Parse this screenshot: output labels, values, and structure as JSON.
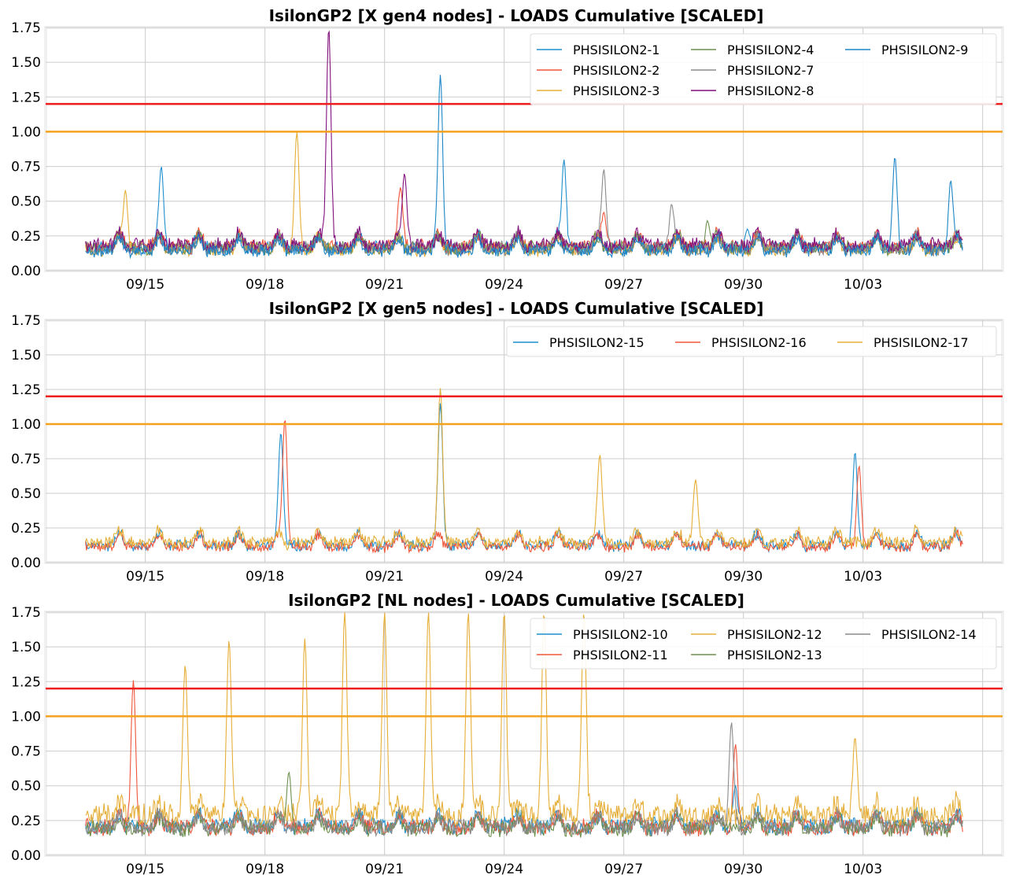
{
  "figure": {
    "thresholds": [
      {
        "value": 1.2,
        "color": "#ee1c1c"
      },
      {
        "value": 1.0,
        "color": "#f4a21e"
      }
    ]
  },
  "chart_data": [
    {
      "type": "line",
      "title": "IsilonGP2 [X gen4 nodes] - LOADS Cumulative [SCALED]",
      "xlabel": "",
      "ylabel": "",
      "xlim": [
        "09/12 12:00",
        "10/06 12:00"
      ],
      "ylim": [
        0,
        1.75
      ],
      "yticks": [
        "0.00",
        "0.25",
        "0.50",
        "0.75",
        "1.00",
        "1.25",
        "1.50",
        "1.75"
      ],
      "xticks": [
        "09/15",
        "09/18",
        "09/21",
        "09/24",
        "09/27",
        "09/30",
        "10/03"
      ],
      "grid": true,
      "legend": {
        "placement": "top-right",
        "columns": 3,
        "entries": [
          "PHSISILON2-1",
          "PHSISILON2-2",
          "PHSISILON2-3",
          "PHSISILON2-4",
          "PHSISILON2-7",
          "PHSISILON2-8",
          "PHSISILON2-9"
        ]
      },
      "series": [
        {
          "name": "PHSISILON2-1",
          "color": "#1f8fcf",
          "baseline": 0.17,
          "spikes": [
            [
              15.4,
              0.75
            ],
            [
              25.5,
              0.8
            ],
            [
              30.1,
              0.3
            ]
          ]
        },
        {
          "name": "PHSISILON2-2",
          "color": "#f0553a",
          "baseline": 0.18,
          "spikes": [
            [
              21.4,
              0.6
            ],
            [
              26.5,
              0.42
            ]
          ]
        },
        {
          "name": "PHSISILON2-3",
          "color": "#e5ae38",
          "baseline": 0.16,
          "spikes": [
            [
              18.8,
              1.0
            ],
            [
              14.5,
              0.58
            ]
          ]
        },
        {
          "name": "PHSISILON2-4",
          "color": "#6d904f",
          "baseline": 0.17,
          "spikes": [
            [
              29.1,
              0.36
            ]
          ]
        },
        {
          "name": "PHSISILON2-7",
          "color": "#8b8b8b",
          "baseline": 0.17,
          "spikes": [
            [
              26.5,
              0.73
            ],
            [
              28.2,
              0.48
            ]
          ]
        },
        {
          "name": "PHSISILON2-8",
          "color": "#810f7c",
          "baseline": 0.19,
          "spikes": [
            [
              19.6,
              1.75
            ],
            [
              21.5,
              0.7
            ]
          ]
        },
        {
          "name": "PHSISILON2-9",
          "color": "#1c86c8",
          "baseline": 0.15,
          "spikes": [
            [
              22.4,
              1.41
            ],
            [
              33.8,
              0.82
            ],
            [
              35.2,
              0.65
            ]
          ]
        }
      ]
    },
    {
      "type": "line",
      "title": "IsilonGP2 [X gen5 nodes] - LOADS Cumulative [SCALED]",
      "xlabel": "",
      "ylabel": "",
      "xlim": [
        "09/12 12:00",
        "10/06 12:00"
      ],
      "ylim": [
        0,
        1.75
      ],
      "yticks": [
        "0.00",
        "0.25",
        "0.50",
        "0.75",
        "1.00",
        "1.25",
        "1.50",
        "1.75"
      ],
      "xticks": [
        "09/15",
        "09/18",
        "09/21",
        "09/24",
        "09/27",
        "09/30",
        "10/03"
      ],
      "grid": true,
      "legend": {
        "placement": "top-right",
        "columns": 3,
        "entries": [
          "PHSISILON2-15",
          "PHSISILON2-16",
          "PHSISILON2-17"
        ]
      },
      "series": [
        {
          "name": "PHSISILON2-15",
          "color": "#1f8fcf",
          "baseline": 0.13,
          "spikes": [
            [
              18.4,
              0.94
            ],
            [
              22.4,
              1.15
            ],
            [
              32.8,
              0.8
            ]
          ]
        },
        {
          "name": "PHSISILON2-16",
          "color": "#f0553a",
          "baseline": 0.12,
          "spikes": [
            [
              18.5,
              1.04
            ],
            [
              32.9,
              0.7
            ]
          ]
        },
        {
          "name": "PHSISILON2-17",
          "color": "#e5ae38",
          "baseline": 0.15,
          "spikes": [
            [
              22.4,
              1.26
            ],
            [
              26.4,
              0.78
            ],
            [
              28.8,
              0.6
            ]
          ]
        }
      ]
    },
    {
      "type": "line",
      "title": "IsilonGP2 [NL nodes] - LOADS Cumulative [SCALED]",
      "xlabel": "",
      "ylabel": "",
      "xlim": [
        "09/12 12:00",
        "10/06 12:00"
      ],
      "ylim": [
        0,
        1.75
      ],
      "yticks": [
        "0.00",
        "0.25",
        "0.50",
        "0.75",
        "1.00",
        "1.25",
        "1.50",
        "1.75"
      ],
      "xticks": [
        "09/15",
        "09/18",
        "09/21",
        "09/24",
        "09/27",
        "09/30",
        "10/03"
      ],
      "grid": true,
      "legend": {
        "placement": "top-right",
        "columns": 3,
        "entries": [
          "PHSISILON2-10",
          "PHSISILON2-11",
          "PHSISILON2-12",
          "PHSISILON2-13",
          "PHSISILON2-14"
        ]
      },
      "series": [
        {
          "name": "PHSISILON2-10",
          "color": "#1f8fcf",
          "baseline": 0.22,
          "spikes": [
            [
              29.8,
              0.5
            ]
          ]
        },
        {
          "name": "PHSISILON2-11",
          "color": "#f0553a",
          "baseline": 0.21,
          "spikes": [
            [
              14.7,
              1.26
            ],
            [
              29.8,
              0.8
            ]
          ]
        },
        {
          "name": "PHSISILON2-12",
          "color": "#e5ae38",
          "baseline": 0.3,
          "spikes": [
            [
              16.0,
              1.37
            ],
            [
              17.1,
              1.55
            ],
            [
              19.0,
              1.56
            ],
            [
              20.0,
              1.75
            ],
            [
              21.0,
              1.75
            ],
            [
              22.1,
              1.75
            ],
            [
              23.1,
              1.75
            ],
            [
              24.0,
              1.75
            ],
            [
              25.0,
              1.75
            ],
            [
              26.0,
              1.75
            ],
            [
              32.8,
              0.85
            ]
          ]
        },
        {
          "name": "PHSISILON2-13",
          "color": "#6d904f",
          "baseline": 0.2,
          "spikes": [
            [
              18.6,
              0.6
            ]
          ]
        },
        {
          "name": "PHSISILON2-14",
          "color": "#8b8b8b",
          "baseline": 0.21,
          "spikes": [
            [
              29.7,
              0.96
            ]
          ]
        }
      ]
    }
  ]
}
